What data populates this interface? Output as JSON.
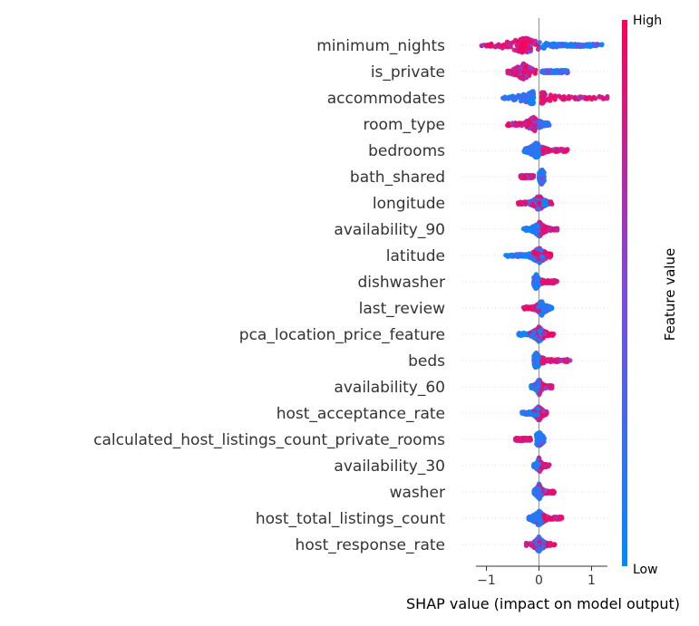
{
  "chart_data": {
    "type": "scatter",
    "subtype": "shap-beeswarm-summary",
    "title": "",
    "xlabel": "SHAP value (impact on model output)",
    "ylabel": "",
    "xlim": [
      -1.2,
      1.3
    ],
    "xticks": [
      {
        "value": -1,
        "label": "−1"
      },
      {
        "value": 0,
        "label": "0"
      },
      {
        "value": 1,
        "label": "1"
      }
    ],
    "grid": false,
    "zero_line": true,
    "colorbar": {
      "title": "Feature value",
      "low_label": "Low",
      "high_label": "High",
      "low_color": "#008bfb",
      "mid_color": "#7b4be0",
      "high_color": "#ff0052"
    },
    "features": [
      {
        "name": "minimum_nights",
        "x_min": -1.1,
        "x_max": 1.2,
        "high_range": [
          -1.1,
          0.0
        ],
        "low_range": [
          0.0,
          1.2
        ],
        "center": -0.28
      },
      {
        "name": "is_private",
        "x_min": -0.6,
        "x_max": 0.55,
        "high_range": [
          -0.6,
          -0.05
        ],
        "low_range": [
          0.05,
          0.55
        ],
        "center": -0.3
      },
      {
        "name": "accommodates",
        "x_min": -0.7,
        "x_max": 1.3,
        "high_range": [
          0.05,
          1.3
        ],
        "low_range": [
          -0.7,
          -0.1
        ],
        "center": -0.05
      },
      {
        "name": "room_type",
        "x_min": -0.6,
        "x_max": 0.2,
        "high_range": [
          -0.6,
          -0.05
        ],
        "low_range": [
          0.0,
          0.2
        ],
        "center": -0.1
      },
      {
        "name": "bedrooms",
        "x_min": -0.3,
        "x_max": 0.55,
        "high_range": [
          0.05,
          0.55
        ],
        "low_range": [
          -0.3,
          0.0
        ],
        "center": -0.05
      },
      {
        "name": "bath_shared",
        "x_min": -0.35,
        "x_max": 0.1,
        "high_range": [
          -0.35,
          -0.1
        ],
        "low_range": [
          0.0,
          0.1
        ],
        "center": 0.05
      },
      {
        "name": "longitude",
        "x_min": -0.4,
        "x_max": 0.25,
        "high_range": [
          -0.4,
          0.25
        ],
        "low_range": [
          -0.2,
          0.2
        ],
        "center": 0.0
      },
      {
        "name": "availability_90",
        "x_min": -0.3,
        "x_max": 0.35,
        "high_range": [
          0.0,
          0.35
        ],
        "low_range": [
          -0.3,
          0.0
        ],
        "center": 0.0
      },
      {
        "name": "latitude",
        "x_min": -0.65,
        "x_max": 0.25,
        "high_range": [
          -0.1,
          0.25
        ],
        "low_range": [
          -0.65,
          0.1
        ],
        "center": 0.0
      },
      {
        "name": "dishwasher",
        "x_min": -0.1,
        "x_max": 0.35,
        "high_range": [
          0.05,
          0.35
        ],
        "low_range": [
          -0.1,
          0.0
        ],
        "center": -0.05
      },
      {
        "name": "last_review",
        "x_min": -0.3,
        "x_max": 0.25,
        "high_range": [
          -0.3,
          0.0
        ],
        "low_range": [
          -0.05,
          0.25
        ],
        "center": 0.05
      },
      {
        "name": "pca_location_price_feature",
        "x_min": -0.4,
        "x_max": 0.3,
        "high_range": [
          -0.2,
          0.3
        ],
        "low_range": [
          -0.4,
          0.05
        ],
        "center": 0.0
      },
      {
        "name": "beds",
        "x_min": -0.1,
        "x_max": 0.6,
        "high_range": [
          0.05,
          0.6
        ],
        "low_range": [
          -0.1,
          0.0
        ],
        "center": -0.05
      },
      {
        "name": "availability_60",
        "x_min": -0.15,
        "x_max": 0.25,
        "high_range": [
          0.0,
          0.25
        ],
        "low_range": [
          -0.15,
          0.0
        ],
        "center": 0.0
      },
      {
        "name": "host_acceptance_rate",
        "x_min": -0.35,
        "x_max": 0.15,
        "high_range": [
          -0.1,
          0.15
        ],
        "low_range": [
          -0.35,
          0.0
        ],
        "center": 0.0
      },
      {
        "name": "calculated_host_listings_count_private_rooms",
        "x_min": -0.45,
        "x_max": 0.1,
        "high_range": [
          -0.45,
          -0.15
        ],
        "low_range": [
          -0.05,
          0.1
        ],
        "center": 0.0
      },
      {
        "name": "availability_30",
        "x_min": -0.1,
        "x_max": 0.2,
        "high_range": [
          0.0,
          0.2
        ],
        "low_range": [
          -0.1,
          0.0
        ],
        "center": 0.0
      },
      {
        "name": "washer",
        "x_min": -0.1,
        "x_max": 0.3,
        "high_range": [
          0.0,
          0.3
        ],
        "low_range": [
          -0.1,
          0.05
        ],
        "center": 0.0
      },
      {
        "name": "host_total_listings_count",
        "x_min": -0.2,
        "x_max": 0.45,
        "high_range": [
          0.05,
          0.45
        ],
        "low_range": [
          -0.2,
          0.05
        ],
        "center": 0.0
      },
      {
        "name": "host_response_rate",
        "x_min": -0.25,
        "x_max": 0.3,
        "high_range": [
          -0.25,
          0.3
        ],
        "low_range": [
          -0.1,
          0.1
        ],
        "center": 0.0
      }
    ]
  }
}
